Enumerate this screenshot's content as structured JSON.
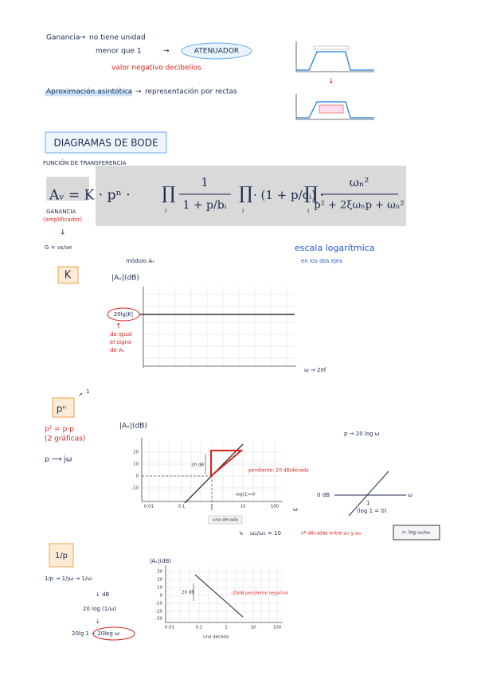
{
  "intro": {
    "line1": {
      "term": "Ganancia",
      "text": "no tiene unidad"
    },
    "line2": {
      "text": "menor que 1",
      "result": "ATENUADOR"
    },
    "line3": "valor negativo decibelios",
    "line4": {
      "term": "Aproximación asintótica",
      "text": "representación por rectas"
    }
  },
  "heading": "DIAGRAMAS DE BODE",
  "formula": {
    "label": "FUNCIÓN DE TRANSFERENCIA",
    "lhs": "Aᵥ = K · pⁿ ·",
    "product": "∏",
    "index": "i",
    "f1_num": "1",
    "f1_den": "1 + p/bᵢ",
    "mid": "· (1 + p/cᵢ) ·",
    "dot": "·",
    "f3_num": "ωₙ²",
    "f3_den": "p² + 2ξωₙp + ωₙ²",
    "gain_label": "GANANCIA",
    "gain_note": "(amplificador)",
    "gain_def": "G = vs/ve"
  },
  "scale_note": {
    "line1": "escala logarítmica",
    "line2": "en los dos ejes"
  },
  "section_k": {
    "box": "K",
    "module": "módulo Aᵥ",
    "axis_title": "|Aᵥ|(dB)",
    "level_label": "20lg|K|",
    "note": [
      "de igual",
      "el signo",
      "de Aᵥ"
    ],
    "x_note": "ω → 2πf"
  },
  "section_pn": {
    "box": "pⁿ",
    "exponent": "1",
    "note1": "p² = p·p",
    "note2": "(2 gráficas)",
    "subst": "p ⟶ jω",
    "axis_title": "|Aᵥ|(dB)",
    "yticks": [
      "20",
      "10",
      "0",
      "-10"
    ],
    "xticks": [
      "0.01",
      "0.1",
      "1",
      "10",
      "100"
    ],
    "x_label": "ω",
    "step_label": "20 dB",
    "slope_label": "pendiente: 20 dB/década",
    "origin_label": "log(1)=0",
    "decade": "una década",
    "right_note": "p → 20 log ω",
    "sketch_zero": "0 dB",
    "sketch_one": "1",
    "sketch_w": "ω",
    "sketch_log": "(log 1 = 0)",
    "ratio": "ω₂/ω₁ = 10",
    "ratio_note": "nº décadas entre ω₁ y ω₂",
    "ratio_formula": "n: log ω₂/ω₁"
  },
  "section_inv": {
    "box": "1/p",
    "chain1": "1/p → 1/jω → 1/ω",
    "chain2": "↓ dB",
    "chain3": "20 log (1/ω)",
    "chain4": "20lg 1 − 20log ω",
    "axis_title": "|Aᵥ|(dB)",
    "yticks": [
      "30",
      "20",
      "10",
      "0",
      "-10",
      "-20",
      "-30"
    ],
    "xticks": [
      "0.01",
      "0.1",
      "1",
      "10",
      "100"
    ],
    "step_label": "20 dB",
    "slope_label": "-20dB pendiente negativa",
    "decade": "una década"
  }
}
